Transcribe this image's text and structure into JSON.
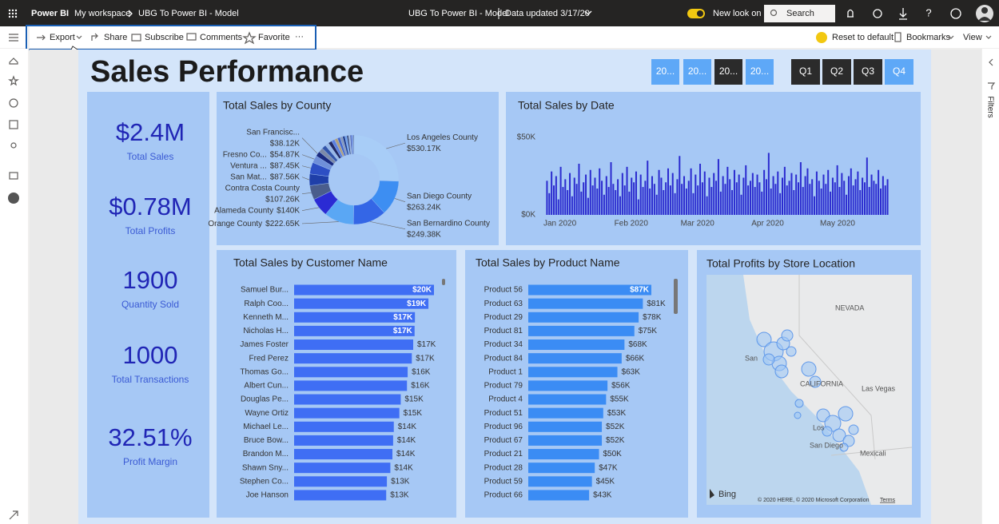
{
  "topbar": {
    "app_name": "Power BI",
    "workspace": "My workspace",
    "report_name": "UBG To Power BI - Model",
    "center_title": "UBG To Power BI - Model",
    "data_updated": "Data updated 3/17/20",
    "new_look": "New look on",
    "search": "Search"
  },
  "toolbar": {
    "export": "Export",
    "share": "Share",
    "subscribe": "Subscribe",
    "comments": "Comments",
    "favorite": "Favorite",
    "more": "···",
    "reset": "Reset to default",
    "bookmarks": "Bookmarks",
    "view": "View"
  },
  "filters": "Filters",
  "report": {
    "title": "Sales Performance",
    "year_slicer": [
      "20...",
      "20...",
      "20...",
      "20..."
    ],
    "quarter_slicer": [
      "Q1",
      "Q2",
      "Q3",
      "Q4"
    ],
    "kpis": [
      {
        "value": "$2.4M",
        "label": "Total Sales"
      },
      {
        "value": "$0.78M",
        "label": "Total Profits"
      },
      {
        "value": "1900",
        "label": "Quantity Sold"
      },
      {
        "value": "1000",
        "label": "Total Transactions"
      },
      {
        "value": "32.51%",
        "label": "Profit Margin"
      }
    ],
    "map": {
      "title": "Total Profits by Store Location",
      "labels": [
        "NEVADA",
        "San",
        "CALIFORNIA",
        "Las Vegas",
        "Los",
        "San Diego",
        "Mexicali"
      ],
      "provider": "Bing",
      "copyright": "© 2020 HERE, © 2020 Microsoft Corporation",
      "terms": "Terms"
    }
  },
  "chart_data": [
    {
      "type": "pie",
      "title": "Total Sales by County",
      "categories": [
        "Los Angeles County",
        "San Diego County",
        "San Bernardino County",
        "Orange County",
        "Alameda County",
        "Contra Costa County",
        "San Mat...",
        "Ventura ...",
        "Fresno Co...",
        "San Francisc...",
        null,
        null,
        null,
        null,
        null,
        null,
        null,
        null,
        null,
        null,
        null,
        null,
        null,
        null,
        null,
        null
      ],
      "values": [
        530.17,
        263.24,
        249.38,
        222.65,
        140,
        107.26,
        87.56,
        87.45,
        54.87,
        38.12,
        34,
        31,
        29,
        27,
        25,
        23,
        21,
        19,
        17,
        15,
        13,
        11,
        9,
        8,
        7,
        6
      ],
      "value_labels": [
        "$530.17K",
        "$263.24K",
        "$249.38K",
        "$222.65K",
        "$140K",
        "$107.26K",
        "$87.56K",
        "$87.45K",
        "$54.87K",
        "$38.12K",
        null,
        null,
        null,
        null,
        null,
        null,
        null,
        null,
        null,
        null,
        null,
        null,
        null,
        null,
        null,
        null
      ],
      "colors": [
        "#a8cdf7",
        "#3d8ef2",
        "#3466e6",
        "#5aa7f4",
        "#2b2bd4",
        "#4a5d8c",
        "#1f3fa8",
        "#2d4fc4",
        "#6f8fd9",
        "#1a2a80",
        "#7d8aa8",
        "#3355aa",
        "#99b8e6",
        "#222a66",
        "#5c7fe0",
        "#b0a080",
        "#4466cc",
        "#8899bb",
        "#1e3a8a",
        "#6fa0ee",
        "#334477",
        "#a0b8dd",
        "#5566aa",
        "#2a4acc",
        "#88aadd",
        "#445588"
      ]
    },
    {
      "type": "bar",
      "orientation": "vertical",
      "title": "Total Sales by Date",
      "color": "#2b2bcf",
      "values": [
        22,
        14,
        28,
        19,
        25,
        10,
        31,
        18,
        23,
        16,
        27,
        12,
        24,
        20,
        33,
        15,
        21,
        26,
        11,
        29,
        19,
        24,
        17,
        30,
        22,
        13,
        25,
        18,
        34,
        20,
        16,
        23,
        12,
        27,
        19,
        31,
        15,
        24,
        21,
        28,
        10,
        26,
        18,
        22,
        35,
        17,
        25,
        20,
        13,
        29,
        24,
        16,
        21,
        30,
        19,
        27,
        14,
        23,
        38,
        20,
        25,
        17,
        22,
        30,
        14,
        26,
        19,
        33,
        21,
        28,
        12,
        24,
        18,
        27,
        22,
        36,
        15,
        25,
        20,
        31,
        23,
        16,
        29,
        21,
        26,
        13,
        24,
        32,
        19,
        22,
        27,
        18,
        26,
        21,
        15,
        29,
        23,
        40,
        17,
        25,
        20,
        28,
        14,
        24,
        31,
        19,
        22,
        27,
        16,
        26,
        21,
        34,
        18,
        25,
        30,
        20,
        23,
        12,
        28,
        22,
        17,
        26,
        20,
        29,
        15,
        24,
        21,
        32,
        18,
        27,
        22,
        13,
        25,
        30,
        19,
        23,
        28,
        16,
        24,
        21,
        37,
        18,
        26,
        22,
        20,
        29,
        17,
        25,
        19,
        23
      ],
      "xlim": [
        0,
        150
      ],
      "xticks": [
        {
          "value": 0,
          "label": "Jan 2020"
        },
        {
          "value": 31,
          "label": "Feb 2020"
        },
        {
          "value": 60,
          "label": "Mar 2020"
        },
        {
          "value": 91,
          "label": "Apr 2020"
        },
        {
          "value": 121,
          "label": "May 2020"
        }
      ],
      "ylim": [
        0,
        50
      ],
      "yticks": [
        {
          "value": 0,
          "label": "$0K"
        },
        {
          "value": 50,
          "label": "$50K"
        }
      ]
    },
    {
      "type": "bar",
      "orientation": "horizontal",
      "title": "Total Sales by Customer Name",
      "color": "#3f6ef4",
      "categories": [
        "Samuel Bur...",
        "Ralph Coo...",
        "Kenneth M...",
        "Nicholas H...",
        "James Foster",
        "Fred Perez",
        "Thomas Go...",
        "Albert Cun...",
        "Douglas Pe...",
        "Wayne Ortiz",
        "Michael Le...",
        "Bruce Bow...",
        "Brandon M...",
        "Shawn Sny...",
        "Stephen Co...",
        "Joe Hanson"
      ],
      "values": [
        20.2,
        19.4,
        17.45,
        17.4,
        17.2,
        17,
        16.4,
        16.3,
        15.4,
        15.2,
        14.4,
        14.3,
        14.2,
        13.9,
        13.4,
        13.3
      ],
      "value_labels": [
        "$20K",
        "$19K",
        "$17K",
        "$17K",
        "$17K",
        "$17K",
        "$16K",
        "$16K",
        "$15K",
        "$15K",
        "$14K",
        "$14K",
        "$14K",
        "$14K",
        "$13K",
        "$13K"
      ]
    },
    {
      "type": "bar",
      "orientation": "horizontal",
      "title": "Total Sales by Product Name",
      "color": "#3b8cf4",
      "categories": [
        "Product 56",
        "Product 63",
        "Product 29",
        "Product 81",
        "Product 34",
        "Product 84",
        "Product 1",
        "Product 79",
        "Product 4",
        "Product 51",
        "Product 96",
        "Product 67",
        "Product 21",
        "Product 28",
        "Product 59",
        "Product 66"
      ],
      "values": [
        87,
        81,
        78,
        75,
        68,
        66,
        63,
        56,
        55,
        53,
        52,
        52,
        50,
        47,
        45,
        43
      ],
      "value_labels": [
        "$87K",
        "$81K",
        "$78K",
        "$75K",
        "$68K",
        "$66K",
        "$63K",
        "$56K",
        "$55K",
        "$53K",
        "$52K",
        "$52K",
        "$50K",
        "$47K",
        "$45K",
        "$43K"
      ]
    }
  ]
}
